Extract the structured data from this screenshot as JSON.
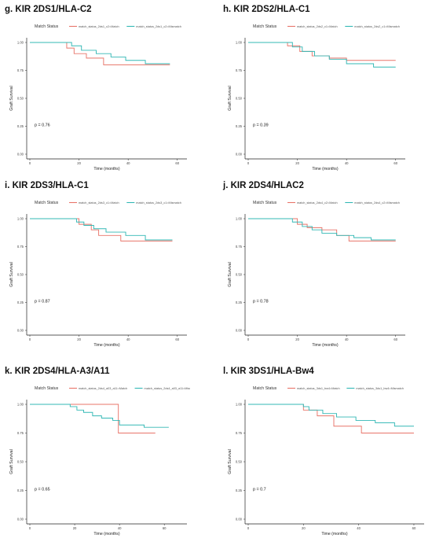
{
  "chart_data": [
    {
      "type": "line",
      "panel_title": "g. KIR 2DS1/HLA-C2",
      "legend_title": "Match Status",
      "xlabel": "Time (months)",
      "ylabel": "Graft Survival",
      "x_ticks": [
        "0",
        "20",
        "40",
        "60"
      ],
      "y_ticks": [
        "0.00",
        "0.25",
        "0.50",
        "0.75",
        "1.00"
      ],
      "xlim": [
        0,
        62
      ],
      "ylim": [
        0,
        1
      ],
      "p_value": "p = 0.76",
      "series": [
        {
          "name": "match_status_2ds1_c2=Match",
          "color": "#e8756a",
          "steps": [
            [
              0,
              1.0
            ],
            [
              15,
              0.95
            ],
            [
              18,
              0.9
            ],
            [
              23,
              0.86
            ],
            [
              30,
              0.8
            ],
            [
              57,
              0.8
            ]
          ]
        },
        {
          "name": "match_status_2ds1_c2=Mismatch",
          "color": "#33b8b5",
          "steps": [
            [
              0,
              1.0
            ],
            [
              17,
              0.97
            ],
            [
              21,
              0.93
            ],
            [
              27,
              0.9
            ],
            [
              33,
              0.87
            ],
            [
              39,
              0.84
            ],
            [
              47,
              0.81
            ],
            [
              57,
              0.81
            ]
          ]
        }
      ]
    },
    {
      "type": "line",
      "panel_title": "h. KIR 2DS2/HLA-C1",
      "legend_title": "Match Status",
      "xlabel": "Time (months)",
      "ylabel": "Graft Survival",
      "x_ticks": [
        "0",
        "20",
        "40",
        "60"
      ],
      "y_ticks": [
        "0.00",
        "0.25",
        "0.50",
        "0.75",
        "1.00"
      ],
      "xlim": [
        0,
        62
      ],
      "ylim": [
        0,
        1
      ],
      "p_value": "p = 0.39",
      "series": [
        {
          "name": "match_status_2ds2_c1=Match",
          "color": "#e8756a",
          "steps": [
            [
              0,
              1.0
            ],
            [
              16,
              0.97
            ],
            [
              21,
              0.92
            ],
            [
              26,
              0.88
            ],
            [
              33,
              0.86
            ],
            [
              40,
              0.84
            ],
            [
              60,
              0.84
            ]
          ]
        },
        {
          "name": "match_status_2ds2_c1=Mismatch",
          "color": "#33b8b5",
          "steps": [
            [
              0,
              1.0
            ],
            [
              18,
              0.96
            ],
            [
              22,
              0.92
            ],
            [
              27,
              0.88
            ],
            [
              33,
              0.85
            ],
            [
              40,
              0.81
            ],
            [
              51,
              0.78
            ],
            [
              60,
              0.78
            ]
          ]
        }
      ]
    },
    {
      "type": "line",
      "panel_title": "i. KIR 2DS3/HLA-C1",
      "legend_title": "Match Status",
      "xlabel": "Time (months)",
      "ylabel": "Graft Survival",
      "x_ticks": [
        "0",
        "20",
        "40",
        "60"
      ],
      "y_ticks": [
        "0.00",
        "0.25",
        "0.50",
        "0.75",
        "1.00"
      ],
      "xlim": [
        0,
        62
      ],
      "ylim": [
        0,
        1
      ],
      "p_value": "p = 0.87",
      "series": [
        {
          "name": "match_status_2ds3_c1=Match",
          "color": "#e8756a",
          "steps": [
            [
              0,
              1.0
            ],
            [
              20,
              0.95
            ],
            [
              25,
              0.9
            ],
            [
              28,
              0.85
            ],
            [
              37,
              0.8
            ],
            [
              58,
              0.8
            ]
          ]
        },
        {
          "name": "match_status_2ds3_c1=Mismatch",
          "color": "#33b8b5",
          "steps": [
            [
              0,
              1.0
            ],
            [
              19,
              0.97
            ],
            [
              22,
              0.94
            ],
            [
              26,
              0.91
            ],
            [
              31,
              0.88
            ],
            [
              39,
              0.85
            ],
            [
              47,
              0.81
            ],
            [
              58,
              0.81
            ]
          ]
        }
      ]
    },
    {
      "type": "line",
      "panel_title": "j. KIR 2DS4/HLAC2",
      "legend_title": "Match Status",
      "xlabel": "Time (months)",
      "ylabel": "Graft Survival",
      "x_ticks": [
        "0",
        "20",
        "40",
        "60"
      ],
      "y_ticks": [
        "0.00",
        "0.25",
        "0.50",
        "0.75",
        "1.00"
      ],
      "xlim": [
        0,
        62
      ],
      "ylim": [
        0,
        1
      ],
      "p_value": "p = 0.78",
      "series": [
        {
          "name": "match_status_2ds4_c2=Match",
          "color": "#e8756a",
          "steps": [
            [
              0,
              1.0
            ],
            [
              20,
              0.95
            ],
            [
              24,
              0.92
            ],
            [
              30,
              0.9
            ],
            [
              36,
              0.85
            ],
            [
              41,
              0.8
            ],
            [
              60,
              0.8
            ]
          ]
        },
        {
          "name": "match_status_2ds4_c2=Mismatch",
          "color": "#33b8b5",
          "steps": [
            [
              0,
              1.0
            ],
            [
              18,
              0.97
            ],
            [
              22,
              0.93
            ],
            [
              26,
              0.9
            ],
            [
              30,
              0.87
            ],
            [
              36,
              0.85
            ],
            [
              43,
              0.83
            ],
            [
              50,
              0.81
            ],
            [
              60,
              0.81
            ]
          ]
        }
      ]
    },
    {
      "type": "line",
      "panel_title": "k. KIR 2DS4/HLA-A3/A11",
      "legend_title": "Match Status",
      "xlabel": "Time (months)",
      "ylabel": "Graft Survival",
      "x_ticks": [
        "0",
        "20",
        "40",
        "60"
      ],
      "y_ticks": [
        "0.00",
        "0.25",
        "0.50",
        "0.75",
        "1.00"
      ],
      "xlim": [
        0,
        68
      ],
      "ylim": [
        0,
        1
      ],
      "p_value": "p = 0.65",
      "series": [
        {
          "name": "match_status_2ds4_a03_a11=Match",
          "color": "#e8756a",
          "steps": [
            [
              0,
              1.0
            ],
            [
              39,
              1.0
            ],
            [
              39.5,
              0.75
            ],
            [
              56,
              0.75
            ]
          ]
        },
        {
          "name": "match_status_2ds4_a03_a11=Mismatch",
          "color": "#33b8b5",
          "steps": [
            [
              0,
              1.0
            ],
            [
              18,
              0.98
            ],
            [
              21,
              0.95
            ],
            [
              24,
              0.93
            ],
            [
              28,
              0.9
            ],
            [
              32,
              0.88
            ],
            [
              37,
              0.86
            ],
            [
              40,
              0.82
            ],
            [
              51,
              0.8
            ],
            [
              62,
              0.8
            ]
          ]
        }
      ]
    },
    {
      "type": "line",
      "panel_title": "l. KIR 3DS1/HLA-Bw4",
      "legend_title": "Match Status",
      "xlabel": "Time (months)",
      "ylabel": "Graft Survival",
      "x_ticks": [
        "0",
        "20",
        "40",
        "60"
      ],
      "y_ticks": [
        "0.00",
        "0.25",
        "0.50",
        "0.75",
        "1.00"
      ],
      "xlim": [
        0,
        62
      ],
      "ylim": [
        0,
        1
      ],
      "p_value": "p = 0.7",
      "series": [
        {
          "name": "match_status_3ds1_bw4=Match",
          "color": "#e8756a",
          "steps": [
            [
              0,
              1.0
            ],
            [
              20,
              0.95
            ],
            [
              25,
              0.9
            ],
            [
              31,
              0.81
            ],
            [
              41,
              0.75
            ],
            [
              60,
              0.75
            ]
          ]
        },
        {
          "name": "match_status_3ds1_bw4=Mismatch",
          "color": "#33b8b5",
          "steps": [
            [
              0,
              1.0
            ],
            [
              20,
              0.98
            ],
            [
              22,
              0.95
            ],
            [
              27,
              0.92
            ],
            [
              32,
              0.89
            ],
            [
              39,
              0.86
            ],
            [
              46,
              0.84
            ],
            [
              53,
              0.81
            ],
            [
              60,
              0.81
            ]
          ]
        }
      ]
    }
  ]
}
